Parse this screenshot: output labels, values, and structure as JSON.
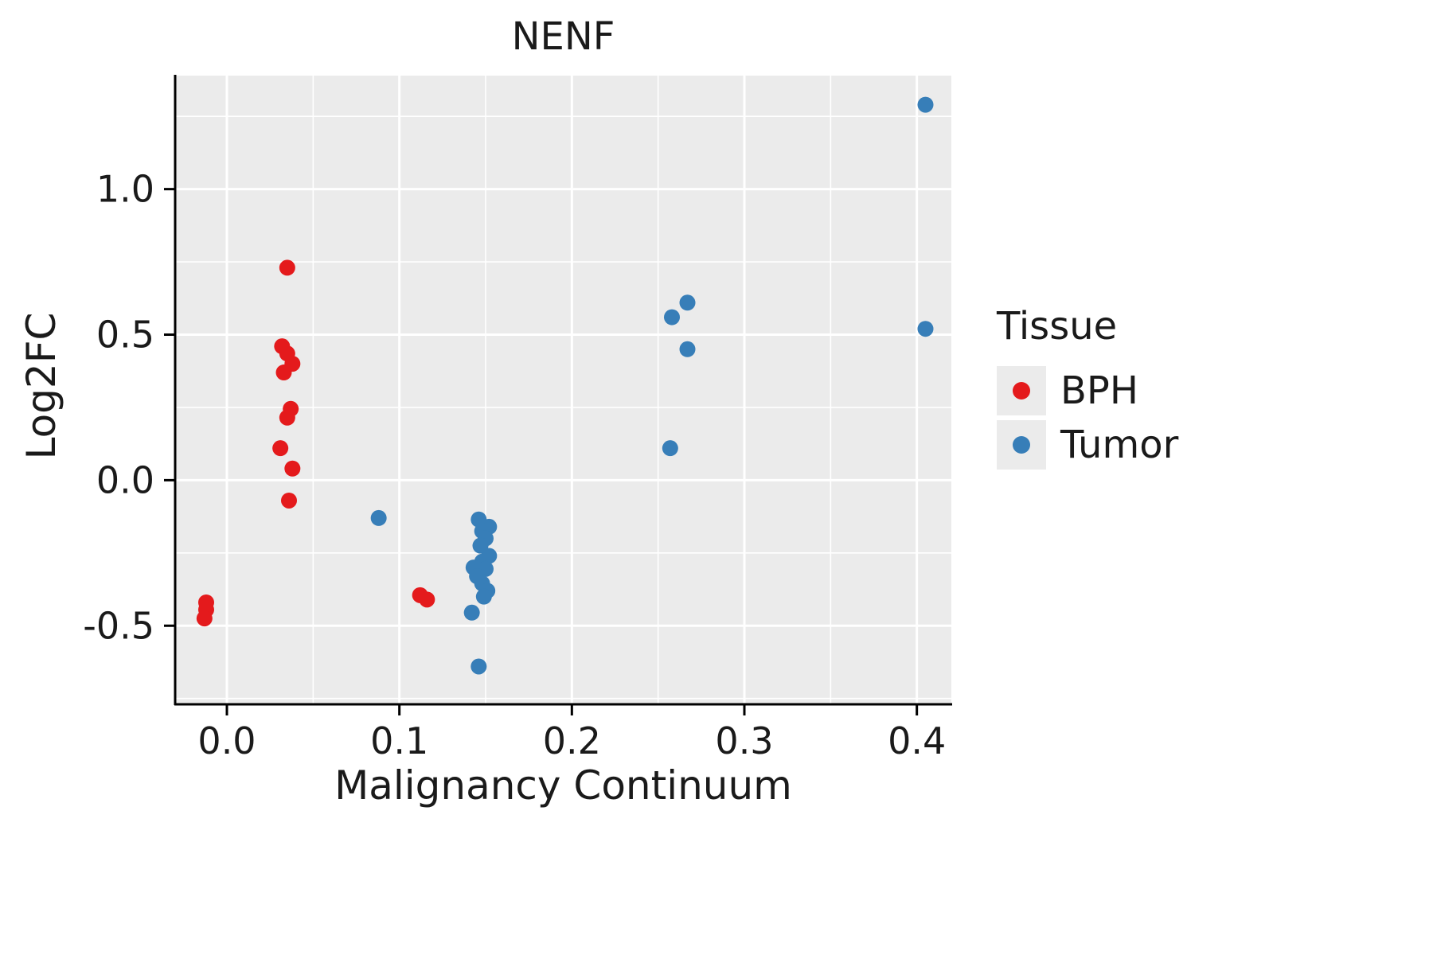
{
  "chart_data": {
    "type": "scatter",
    "title": "NENF",
    "xlabel": "Malignancy Continuum",
    "ylabel": "Log2FC",
    "legend_title": "Tissue",
    "legend_position": "right",
    "grid": true,
    "panel_bg": "#EBEBEB",
    "grid_color": "#FFFFFF",
    "axis_color": "#000000",
    "x_range": [
      -0.03,
      0.42
    ],
    "y_range": [
      -0.77,
      1.39
    ],
    "x_ticks": [
      0.0,
      0.1,
      0.2,
      0.3,
      0.4
    ],
    "x_tick_labels": [
      "0.0",
      "0.1",
      "0.2",
      "0.3",
      "0.4"
    ],
    "x_minor_ticks": [
      0.05,
      0.15,
      0.25,
      0.35
    ],
    "y_ticks": [
      -0.5,
      0.0,
      0.5,
      1.0
    ],
    "y_tick_labels": [
      "-0.5",
      "0.0",
      "0.5",
      "1.0"
    ],
    "y_minor_ticks": [
      -0.75,
      -0.25,
      0.25,
      0.75,
      1.25
    ],
    "point_radius": 10,
    "series": [
      {
        "name": "BPH",
        "color": "#E41A1C",
        "points": [
          [
            -0.012,
            -0.42
          ],
          [
            -0.012,
            -0.445
          ],
          [
            -0.013,
            -0.475
          ],
          [
            0.035,
            0.73
          ],
          [
            0.032,
            0.46
          ],
          [
            0.035,
            0.435
          ],
          [
            0.033,
            0.37
          ],
          [
            0.038,
            0.4
          ],
          [
            0.037,
            0.245
          ],
          [
            0.035,
            0.215
          ],
          [
            0.031,
            0.11
          ],
          [
            0.038,
            0.04
          ],
          [
            0.036,
            -0.07
          ],
          [
            0.112,
            -0.395
          ],
          [
            0.116,
            -0.41
          ]
        ]
      },
      {
        "name": "Tumor",
        "color": "#377EB8",
        "points": [
          [
            0.088,
            -0.13
          ],
          [
            0.146,
            -0.135
          ],
          [
            0.152,
            -0.16
          ],
          [
            0.148,
            -0.175
          ],
          [
            0.15,
            -0.2
          ],
          [
            0.147,
            -0.225
          ],
          [
            0.152,
            -0.26
          ],
          [
            0.148,
            -0.28
          ],
          [
            0.143,
            -0.3
          ],
          [
            0.15,
            -0.305
          ],
          [
            0.145,
            -0.33
          ],
          [
            0.148,
            -0.355
          ],
          [
            0.151,
            -0.38
          ],
          [
            0.149,
            -0.4
          ],
          [
            0.142,
            -0.455
          ],
          [
            0.146,
            -0.64
          ],
          [
            0.258,
            0.56
          ],
          [
            0.267,
            0.61
          ],
          [
            0.267,
            0.45
          ],
          [
            0.257,
            0.11
          ],
          [
            0.405,
            1.29
          ],
          [
            0.405,
            0.52
          ]
        ]
      }
    ]
  }
}
